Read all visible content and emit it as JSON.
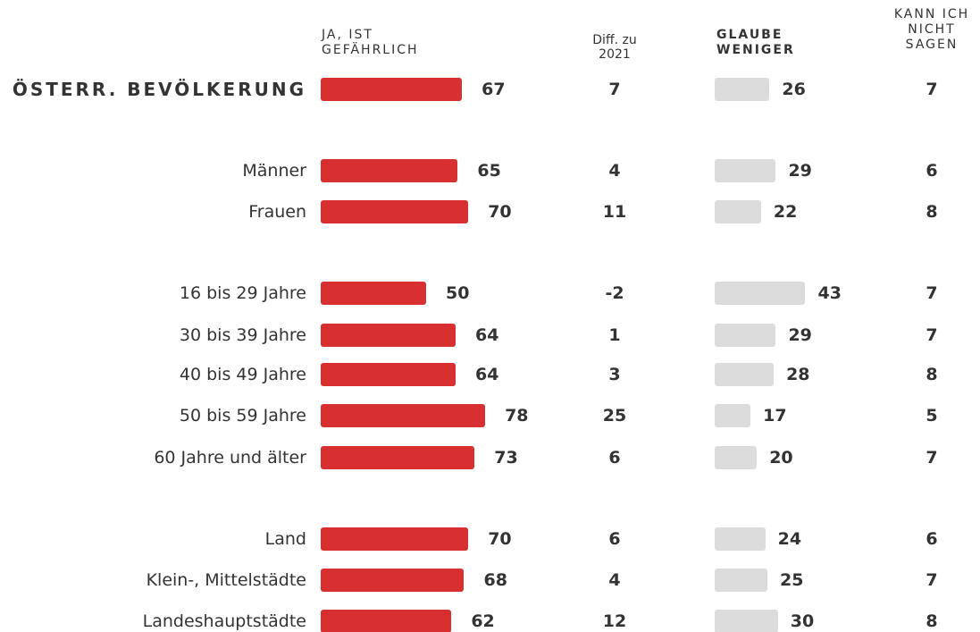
{
  "chart_data": {
    "type": "bar",
    "categories": [
      "ÖSTERR. BEVÖLKERUNG",
      "Männer",
      "Frauen",
      "16 bis 29 Jahre",
      "30 bis 39 Jahre",
      "40 bis 49 Jahre",
      "50 bis 59 Jahre",
      "60 Jahre und älter",
      "Land",
      "Klein-, Mittelstädte",
      "Landeshauptstädte"
    ],
    "series": [
      {
        "name": "JA, IST GEFÄHRLICH",
        "color": "#d83030",
        "values": [
          67,
          65,
          70,
          50,
          64,
          64,
          78,
          73,
          70,
          68,
          62
        ]
      },
      {
        "name": "Diff. zu 2021",
        "values": [
          7,
          4,
          11,
          -2,
          1,
          3,
          25,
          6,
          6,
          4,
          12
        ]
      },
      {
        "name": "GLAUBE WENIGER",
        "color": "#dcdcdc",
        "values": [
          26,
          29,
          22,
          43,
          29,
          28,
          17,
          20,
          24,
          25,
          30
        ]
      },
      {
        "name": "KANN ICH NICHT SAGEN",
        "values": [
          7,
          6,
          8,
          7,
          7,
          8,
          5,
          7,
          6,
          7,
          8
        ]
      }
    ]
  }
}
